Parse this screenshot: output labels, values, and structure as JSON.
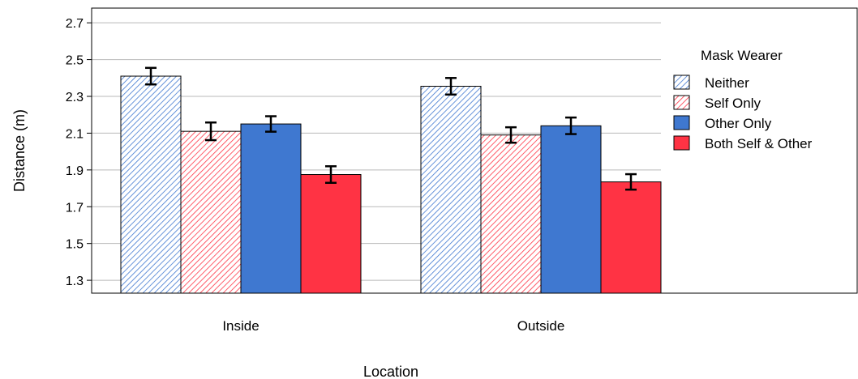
{
  "chart_data": {
    "type": "bar",
    "xlabel": "Location",
    "ylabel": "Distance (m)",
    "categories": [
      "Inside",
      "Outside"
    ],
    "ylim": [
      1.23,
      2.78
    ],
    "yticks": [
      1.3,
      1.5,
      1.7,
      1.9,
      2.1,
      2.3,
      2.5,
      2.7
    ],
    "ytick_labels": [
      "1.3",
      "1.5",
      "1.7",
      "1.9",
      "2.1",
      "2.3",
      "2.5",
      "2.7"
    ],
    "grid": true,
    "legend": {
      "title": "Mask Wearer",
      "placement": "right"
    },
    "series": [
      {
        "name": "Neither",
        "color": "#3f78d0",
        "pattern": "hatched",
        "values": [
          2.41,
          2.355
        ],
        "errors": [
          0.045,
          0.045
        ]
      },
      {
        "name": "Self Only",
        "color": "#ff3344",
        "pattern": "hatched",
        "values": [
          2.11,
          2.09
        ],
        "errors": [
          0.048,
          0.042
        ]
      },
      {
        "name": "Other Only",
        "color": "#3f78d0",
        "pattern": "solid",
        "values": [
          2.15,
          2.14
        ],
        "errors": [
          0.042,
          0.045
        ]
      },
      {
        "name": "Both Self & Other",
        "color": "#ff3344",
        "pattern": "solid",
        "values": [
          1.875,
          1.835
        ],
        "errors": [
          0.045,
          0.042
        ]
      }
    ]
  }
}
